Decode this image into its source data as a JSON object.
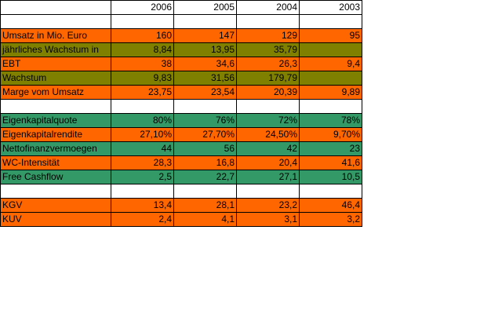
{
  "colors": {
    "orange": "#FF6600",
    "olive": "#808000",
    "green": "#339966",
    "blank": "#FFFFFF"
  },
  "table": {
    "header": [
      "",
      "2006",
      "2005",
      "2004",
      "2003"
    ],
    "rows": [
      {
        "kind": "blank",
        "cells": [
          "",
          "",
          "",
          "",
          ""
        ]
      },
      {
        "kind": "orange",
        "cells": [
          "Umsatz in Mio. Euro",
          "160",
          "147",
          "129",
          "95"
        ]
      },
      {
        "kind": "olive",
        "cells": [
          "jährliches Wachstum in",
          "8,84",
          "13,95",
          "35,79",
          ""
        ]
      },
      {
        "kind": "orange",
        "cells": [
          "EBT",
          "38",
          "34,6",
          "26,3",
          "9,4"
        ]
      },
      {
        "kind": "olive",
        "cells": [
          "Wachstum",
          "9,83",
          "31,56",
          "179,79",
          ""
        ]
      },
      {
        "kind": "orange",
        "cells": [
          "Marge vom Umsatz",
          "23,75",
          "23,54",
          "20,39",
          "9,89"
        ]
      },
      {
        "kind": "blank",
        "cells": [
          "",
          "",
          "",
          "",
          ""
        ]
      },
      {
        "kind": "green",
        "cells": [
          "Eigenkapitalquote",
          "80%",
          "76%",
          "72%",
          "78%"
        ]
      },
      {
        "kind": "orange",
        "cells": [
          "Eigenkapitalrendite",
          "27,10%",
          "27,70%",
          "24,50%",
          "9,70%"
        ]
      },
      {
        "kind": "green",
        "cells": [
          "Nettofinanzvermoegen",
          "44",
          "56",
          "42",
          "23"
        ]
      },
      {
        "kind": "orange",
        "cells": [
          "WC-Intensität",
          "28,3",
          "16,8",
          "20,4",
          "41,6"
        ]
      },
      {
        "kind": "green",
        "cells": [
          "Free Cashflow",
          "2,5",
          "22,7",
          "27,1",
          "10,5"
        ]
      },
      {
        "kind": "blank",
        "cells": [
          "",
          "",
          "",
          "",
          ""
        ]
      },
      {
        "kind": "orange",
        "cells": [
          "KGV",
          "13,4",
          "28,1",
          "23,2",
          "46,4"
        ]
      },
      {
        "kind": "orange",
        "cells": [
          "KUV",
          "2,4",
          "4,1",
          "3,1",
          "3,2"
        ]
      }
    ]
  }
}
